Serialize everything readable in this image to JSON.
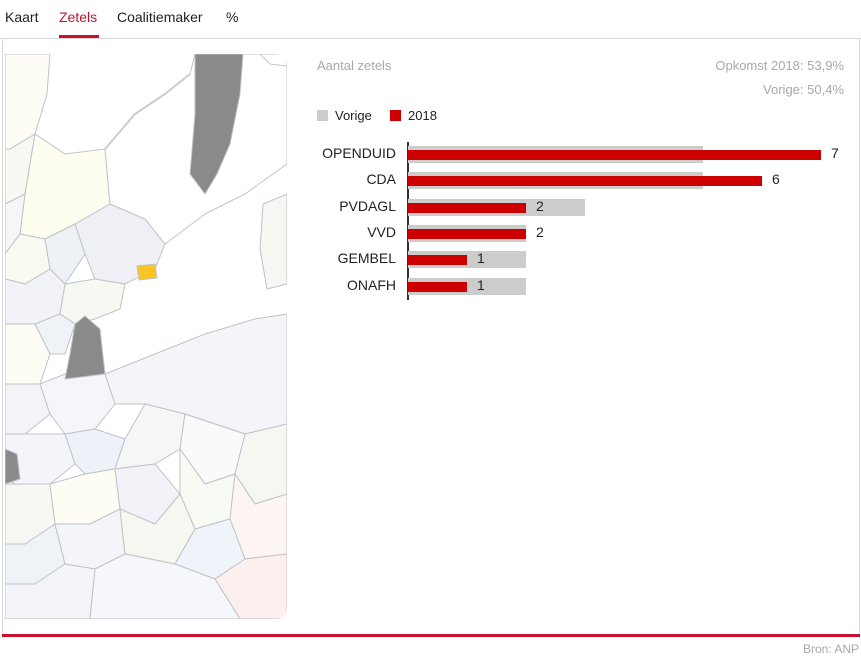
{
  "tabs": [
    {
      "label": "Kaart",
      "active": false
    },
    {
      "label": "Zetels",
      "active": true
    },
    {
      "label": "Coalitiemaker",
      "active": false
    },
    {
      "label": "%",
      "active": false
    }
  ],
  "colors": {
    "accent": "#c8102e",
    "previous": "#cccccc",
    "current": "#cc0000",
    "map_highlight": "#f9c623",
    "map_other_municipality": "#8a8a8a"
  },
  "header": {
    "title": "Aantal zetels",
    "turnout": "Opkomst 2018: 53,9%",
    "previous_turnout": "Vorige: 50,4%"
  },
  "legend": [
    {
      "label": "Vorige",
      "color": "#cccccc"
    },
    {
      "label": "2018",
      "color": "#cc0000"
    }
  ],
  "chart_data": {
    "type": "bar",
    "orientation": "horizontal",
    "categories": [
      "OPENDUID",
      "CDA",
      "PVDAGL",
      "VVD",
      "GEMBEL",
      "ONAFH"
    ],
    "series": [
      {
        "name": "Vorige",
        "values": [
          5,
          5,
          3,
          2,
          2,
          2
        ]
      },
      {
        "name": "2018",
        "values": [
          7,
          6,
          2,
          2,
          1,
          1
        ]
      }
    ],
    "value_labels": [
      "7",
      "6",
      "2",
      "2",
      "1",
      "1"
    ],
    "xlim": [
      0,
      7
    ],
    "grid": false,
    "legend_position": "top-left"
  },
  "footer": {
    "source": "Bron: ANP"
  }
}
